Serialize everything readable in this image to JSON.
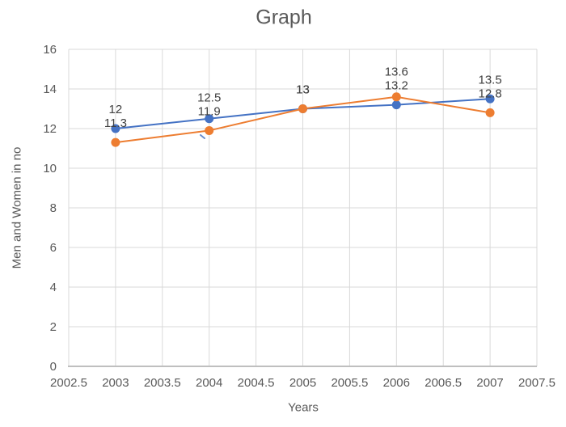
{
  "chart_data": {
    "type": "line",
    "title": "Graph",
    "xlabel": "Years",
    "ylabel": "Men and Women in no",
    "x": [
      2003,
      2004,
      2005,
      2006,
      2007
    ],
    "series": [
      {
        "name": "blue",
        "color": "#4472C4",
        "values": [
          12,
          12.5,
          13,
          13.2,
          13.5
        ]
      },
      {
        "name": "orange",
        "color": "#ED7D31",
        "values": [
          11.3,
          11.9,
          13,
          13.6,
          12.8
        ]
      }
    ],
    "xlim": [
      2002.5,
      2007.5
    ],
    "ylim": [
      0,
      16
    ],
    "x_ticks": [
      2002.5,
      2003,
      2003.5,
      2004,
      2004.5,
      2005,
      2005.5,
      2006,
      2006.5,
      2007,
      2007.5
    ],
    "y_ticks": [
      0,
      2,
      4,
      6,
      8,
      10,
      12,
      14,
      16
    ],
    "grid": "both",
    "legend": "none",
    "data_labels": true,
    "palette": {
      "gridline": "#D9D9D9",
      "axis_line": "#BFBFBF",
      "tick_text": "#595959",
      "title_text": "#595959",
      "data_label_text": "#404040"
    }
  }
}
